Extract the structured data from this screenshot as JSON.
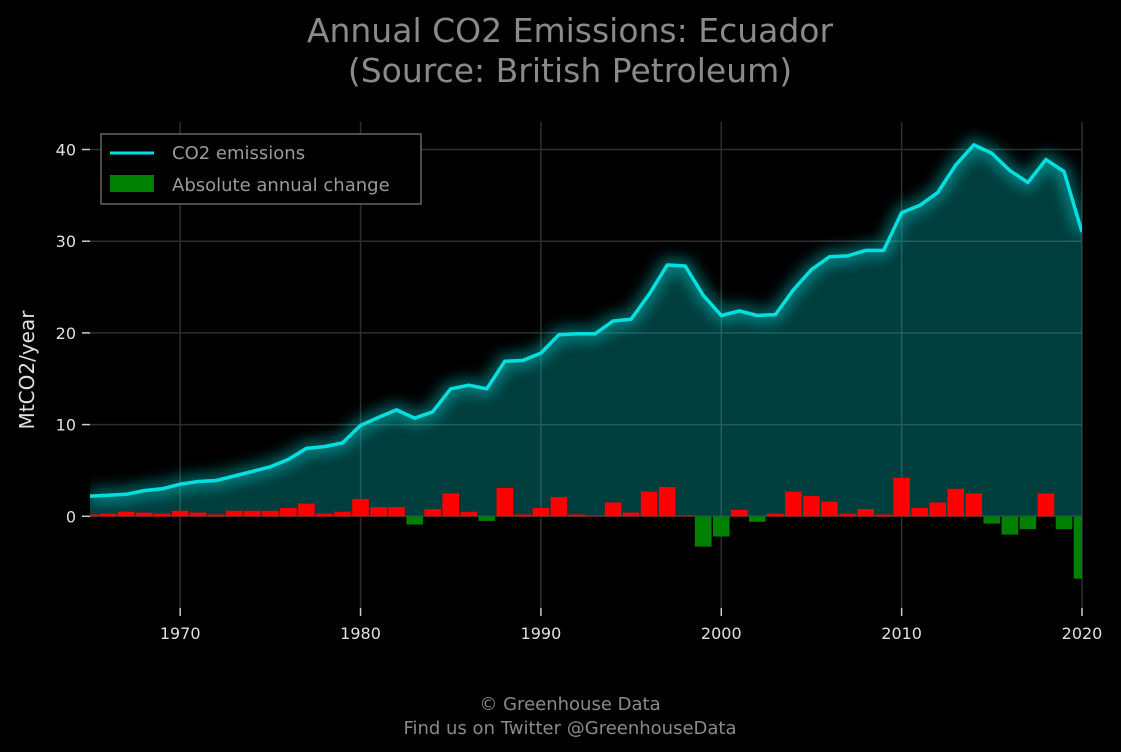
{
  "chart_data": {
    "type": "line",
    "title": "Annual CO2 Emissions: Ecuador",
    "subtitle": "(Source: British Petroleum)",
    "xlabel": "",
    "ylabel": "MtCO2/year",
    "xlim": [
      1965,
      2020
    ],
    "ylim": [
      -10,
      43
    ],
    "x_ticks": [
      1970,
      1980,
      1990,
      2000,
      2010,
      2020
    ],
    "y_ticks": [
      0,
      10,
      20,
      30,
      40
    ],
    "grid": true,
    "legend_position": "top-left",
    "x": [
      1965,
      1966,
      1967,
      1968,
      1969,
      1970,
      1971,
      1972,
      1973,
      1974,
      1975,
      1976,
      1977,
      1978,
      1979,
      1980,
      1981,
      1982,
      1983,
      1984,
      1985,
      1986,
      1987,
      1988,
      1989,
      1990,
      1991,
      1992,
      1993,
      1994,
      1995,
      1996,
      1997,
      1998,
      1999,
      2000,
      2001,
      2002,
      2003,
      2004,
      2005,
      2006,
      2007,
      2008,
      2009,
      2010,
      2011,
      2012,
      2013,
      2014,
      2015,
      2016,
      2017,
      2018,
      2019,
      2020
    ],
    "series": [
      {
        "name": "CO2 emissions",
        "color": "#00e0e0",
        "values": [
          2.2,
          2.3,
          2.4,
          2.8,
          3.0,
          3.5,
          3.8,
          3.9,
          4.4,
          4.9,
          5.4,
          6.2,
          7.4,
          7.6,
          8.0,
          9.9,
          10.8,
          11.6,
          10.7,
          11.4,
          13.9,
          14.3,
          13.9,
          16.9,
          17.0,
          17.8,
          19.8,
          19.9,
          19.9,
          21.3,
          21.5,
          24.2,
          27.4,
          27.3,
          24.1,
          21.9,
          22.4,
          21.9,
          22.0,
          24.7,
          26.9,
          28.3,
          28.4,
          29.0,
          29.0,
          33.1,
          33.9,
          35.3,
          38.3,
          40.5,
          39.6,
          37.7,
          36.4,
          38.9,
          37.6,
          31.0
        ]
      },
      {
        "name": "Absolute annual change",
        "positive_color": "#ff0000",
        "negative_color": "#008000",
        "values": [
          0.2,
          0.3,
          0.5,
          0.4,
          0.3,
          0.6,
          0.4,
          0.2,
          0.6,
          0.6,
          0.6,
          0.9,
          1.4,
          0.3,
          0.5,
          1.9,
          1.0,
          1.0,
          -0.9,
          0.8,
          2.5,
          0.5,
          -0.5,
          3.1,
          0.2,
          0.9,
          2.1,
          0.2,
          0.1,
          1.5,
          0.4,
          2.7,
          3.2,
          0.1,
          -3.3,
          -2.2,
          0.7,
          -0.6,
          0.3,
          2.7,
          2.2,
          1.6,
          0.3,
          0.8,
          0.2,
          4.2,
          0.9,
          1.5,
          3.0,
          2.5,
          -0.8,
          -2.0,
          -1.4,
          2.5,
          -1.4,
          -6.8
        ]
      }
    ]
  },
  "footer": {
    "copyright": "© Greenhouse Data",
    "twitter": "Find us on Twitter @GreenhouseData"
  }
}
